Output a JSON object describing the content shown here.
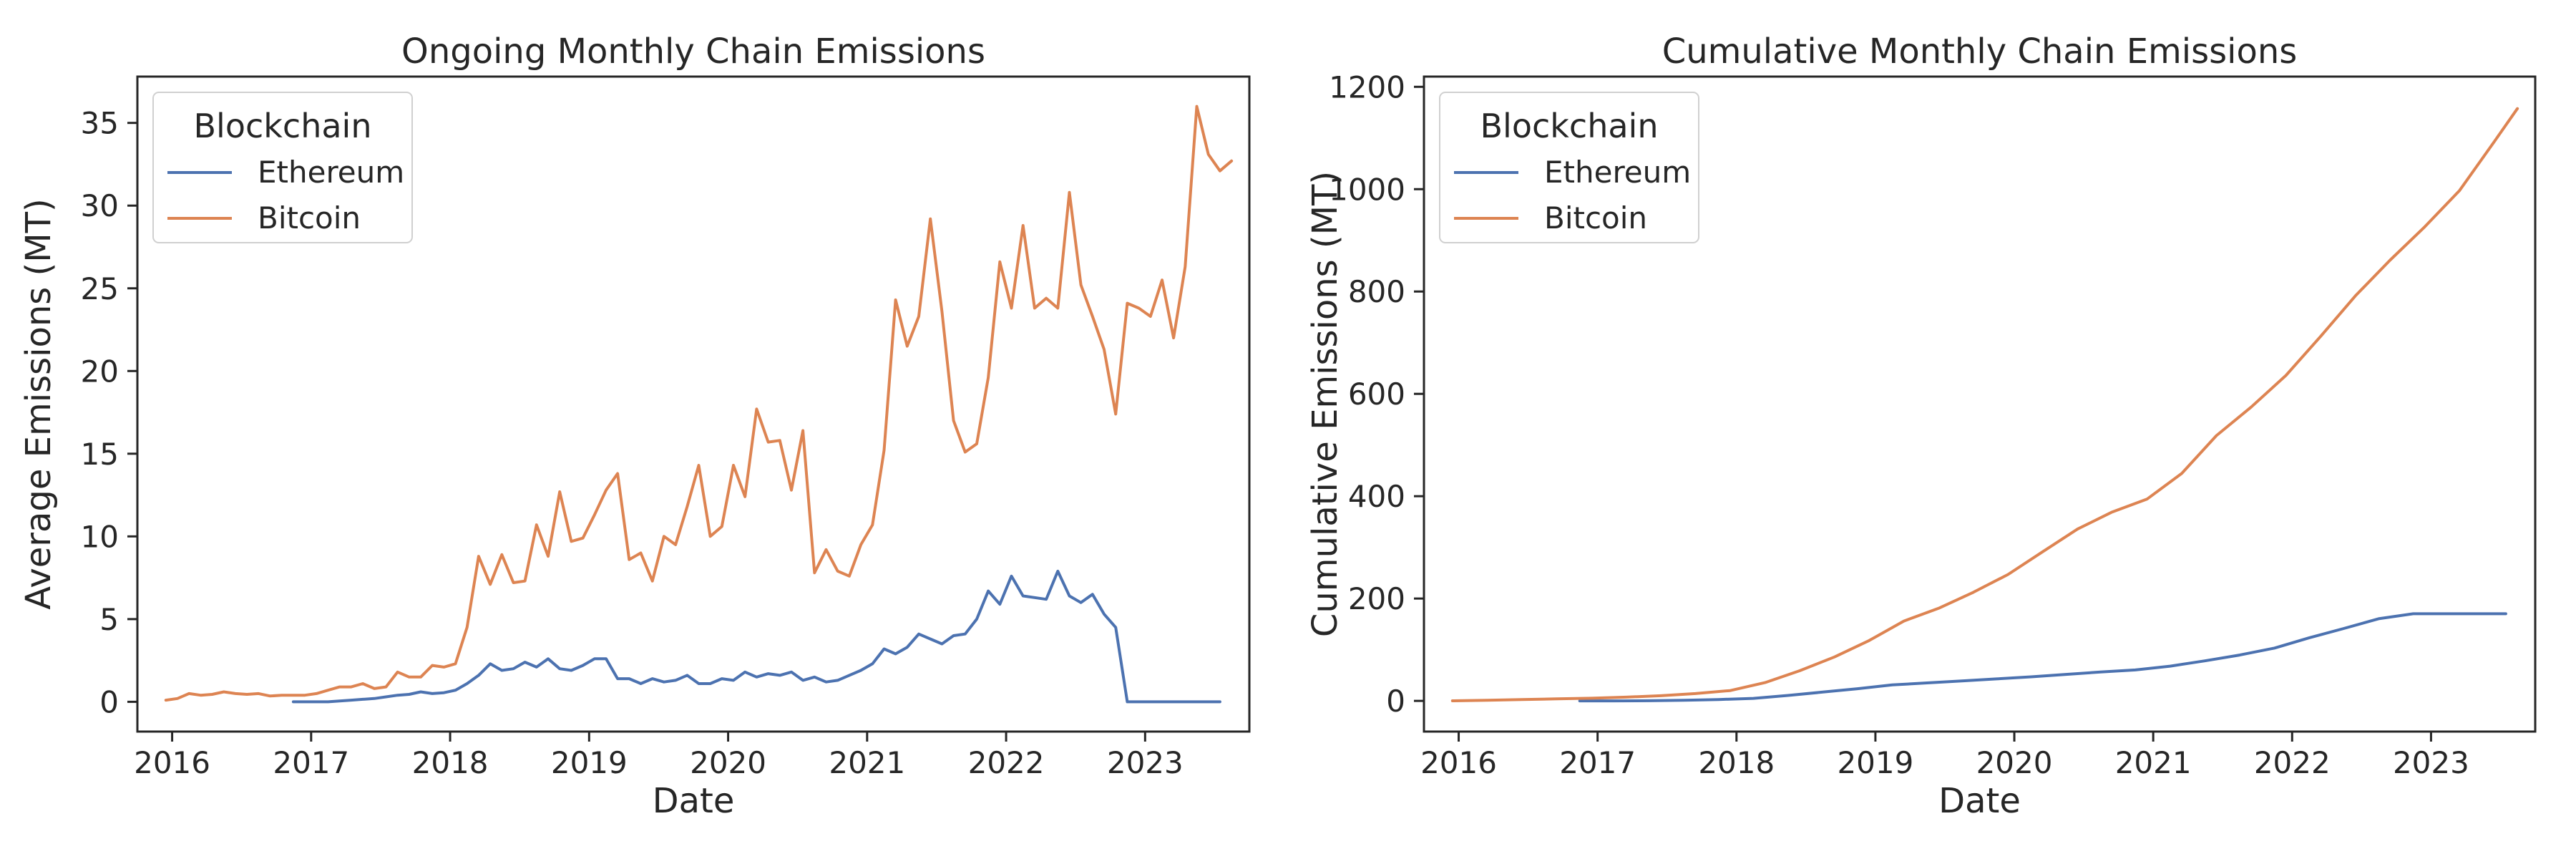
{
  "chart_data": [
    {
      "type": "line",
      "title": "Ongoing Monthly Chain Emissions",
      "xlabel": "Date",
      "ylabel": "Average Emissions (MT)",
      "xlim": [
        "2015-10-01",
        "2023-10-01"
      ],
      "ylim": [
        -1.8,
        37.8
      ],
      "xticks": [
        "2016",
        "2017",
        "2018",
        "2019",
        "2020",
        "2021",
        "2022",
        "2023"
      ],
      "yticks": [
        0,
        5,
        10,
        15,
        20,
        25,
        30,
        35
      ],
      "legend": {
        "title": "Blockchain",
        "position": "top-left"
      },
      "grid": false,
      "series": [
        {
          "name": "Ethereum",
          "color": "#4c72b0",
          "points": [
            [
              "2016-11",
              0.0
            ],
            [
              "2016-12",
              0.0
            ],
            [
              "2017-01",
              0.0
            ],
            [
              "2017-02",
              0.0
            ],
            [
              "2017-03",
              0.05
            ],
            [
              "2017-04",
              0.1
            ],
            [
              "2017-05",
              0.15
            ],
            [
              "2017-06",
              0.2
            ],
            [
              "2017-07",
              0.3
            ],
            [
              "2017-08",
              0.4
            ],
            [
              "2017-09",
              0.45
            ],
            [
              "2017-10",
              0.6
            ],
            [
              "2017-11",
              0.5
            ],
            [
              "2017-12",
              0.55
            ],
            [
              "2018-01",
              0.7
            ],
            [
              "2018-02",
              1.1
            ],
            [
              "2018-03",
              1.6
            ],
            [
              "2018-04",
              2.3
            ],
            [
              "2018-05",
              1.9
            ],
            [
              "2018-06",
              2.0
            ],
            [
              "2018-07",
              2.4
            ],
            [
              "2018-08",
              2.1
            ],
            [
              "2018-09",
              2.6
            ],
            [
              "2018-10",
              2.0
            ],
            [
              "2018-11",
              1.9
            ],
            [
              "2018-12",
              2.2
            ],
            [
              "2019-01",
              2.6
            ],
            [
              "2019-02",
              2.6
            ],
            [
              "2019-03",
              1.4
            ],
            [
              "2019-04",
              1.4
            ],
            [
              "2019-05",
              1.1
            ],
            [
              "2019-06",
              1.4
            ],
            [
              "2019-07",
              1.2
            ],
            [
              "2019-08",
              1.3
            ],
            [
              "2019-09",
              1.6
            ],
            [
              "2019-10",
              1.1
            ],
            [
              "2019-11",
              1.1
            ],
            [
              "2019-12",
              1.4
            ],
            [
              "2020-01",
              1.3
            ],
            [
              "2020-02",
              1.8
            ],
            [
              "2020-03",
              1.5
            ],
            [
              "2020-04",
              1.7
            ],
            [
              "2020-05",
              1.6
            ],
            [
              "2020-06",
              1.8
            ],
            [
              "2020-07",
              1.3
            ],
            [
              "2020-08",
              1.5
            ],
            [
              "2020-09",
              1.2
            ],
            [
              "2020-10",
              1.3
            ],
            [
              "2020-11",
              1.6
            ],
            [
              "2020-12",
              1.9
            ],
            [
              "2021-01",
              2.3
            ],
            [
              "2021-02",
              3.2
            ],
            [
              "2021-03",
              2.9
            ],
            [
              "2021-04",
              3.3
            ],
            [
              "2021-05",
              4.1
            ],
            [
              "2021-06",
              3.8
            ],
            [
              "2021-07",
              3.5
            ],
            [
              "2021-08",
              4.0
            ],
            [
              "2021-09",
              4.1
            ],
            [
              "2021-10",
              5.0
            ],
            [
              "2021-11",
              6.7
            ],
            [
              "2021-12",
              5.9
            ],
            [
              "2022-01",
              7.6
            ],
            [
              "2022-02",
              6.4
            ],
            [
              "2022-03",
              6.3
            ],
            [
              "2022-04",
              6.2
            ],
            [
              "2022-05",
              7.9
            ],
            [
              "2022-06",
              6.4
            ],
            [
              "2022-07",
              6.0
            ],
            [
              "2022-08",
              6.5
            ],
            [
              "2022-09",
              5.3
            ],
            [
              "2022-10",
              4.5
            ],
            [
              "2022-11",
              0.0
            ],
            [
              "2022-12",
              0.0
            ],
            [
              "2023-01",
              0.0
            ],
            [
              "2023-02",
              0.0
            ],
            [
              "2023-03",
              0.0
            ],
            [
              "2023-04",
              0.0
            ],
            [
              "2023-05",
              0.0
            ],
            [
              "2023-06",
              0.0
            ],
            [
              "2023-07",
              0.0
            ]
          ]
        },
        {
          "name": "Bitcoin",
          "color": "#dd8452",
          "points": [
            [
              "2015-12",
              0.1
            ],
            [
              "2016-01",
              0.2
            ],
            [
              "2016-02",
              0.5
            ],
            [
              "2016-03",
              0.4
            ],
            [
              "2016-04",
              0.45
            ],
            [
              "2016-05",
              0.6
            ],
            [
              "2016-06",
              0.5
            ],
            [
              "2016-07",
              0.45
            ],
            [
              "2016-08",
              0.5
            ],
            [
              "2016-09",
              0.35
            ],
            [
              "2016-10",
              0.4
            ],
            [
              "2016-11",
              0.4
            ],
            [
              "2016-12",
              0.4
            ],
            [
              "2017-01",
              0.5
            ],
            [
              "2017-02",
              0.7
            ],
            [
              "2017-03",
              0.9
            ],
            [
              "2017-04",
              0.9
            ],
            [
              "2017-05",
              1.1
            ],
            [
              "2017-06",
              0.8
            ],
            [
              "2017-07",
              0.9
            ],
            [
              "2017-08",
              1.8
            ],
            [
              "2017-09",
              1.5
            ],
            [
              "2017-10",
              1.5
            ],
            [
              "2017-11",
              2.2
            ],
            [
              "2017-12",
              2.1
            ],
            [
              "2018-01",
              2.3
            ],
            [
              "2018-02",
              4.5
            ],
            [
              "2018-03",
              8.8
            ],
            [
              "2018-04",
              7.1
            ],
            [
              "2018-05",
              8.9
            ],
            [
              "2018-06",
              7.2
            ],
            [
              "2018-07",
              7.3
            ],
            [
              "2018-08",
              10.7
            ],
            [
              "2018-09",
              8.8
            ],
            [
              "2018-10",
              12.7
            ],
            [
              "2018-11",
              9.7
            ],
            [
              "2018-12",
              9.9
            ],
            [
              "2019-01",
              11.3
            ],
            [
              "2019-02",
              12.8
            ],
            [
              "2019-03",
              13.8
            ],
            [
              "2019-04",
              8.6
            ],
            [
              "2019-05",
              9.0
            ],
            [
              "2019-06",
              7.3
            ],
            [
              "2019-07",
              10.0
            ],
            [
              "2019-08",
              9.5
            ],
            [
              "2019-09",
              11.8
            ],
            [
              "2019-10",
              14.3
            ],
            [
              "2019-11",
              10.0
            ],
            [
              "2019-12",
              10.6
            ],
            [
              "2020-01",
              14.3
            ],
            [
              "2020-02",
              12.4
            ],
            [
              "2020-03",
              17.7
            ],
            [
              "2020-04",
              15.7
            ],
            [
              "2020-05",
              15.8
            ],
            [
              "2020-06",
              12.8
            ],
            [
              "2020-07",
              16.4
            ],
            [
              "2020-08",
              7.8
            ],
            [
              "2020-09",
              9.2
            ],
            [
              "2020-10",
              7.9
            ],
            [
              "2020-11",
              7.6
            ],
            [
              "2020-12",
              9.5
            ],
            [
              "2021-01",
              10.7
            ],
            [
              "2021-02",
              15.2
            ],
            [
              "2021-03",
              24.3
            ],
            [
              "2021-04",
              21.5
            ],
            [
              "2021-05",
              23.3
            ],
            [
              "2021-06",
              29.2
            ],
            [
              "2021-07",
              23.6
            ],
            [
              "2021-08",
              17.0
            ],
            [
              "2021-09",
              15.1
            ],
            [
              "2021-10",
              15.6
            ],
            [
              "2021-11",
              19.6
            ],
            [
              "2021-12",
              26.6
            ],
            [
              "2022-01",
              23.8
            ],
            [
              "2022-02",
              28.8
            ],
            [
              "2022-03",
              23.8
            ],
            [
              "2022-04",
              24.4
            ],
            [
              "2022-05",
              23.8
            ],
            [
              "2022-06",
              30.8
            ],
            [
              "2022-07",
              25.2
            ],
            [
              "2022-08",
              23.3
            ],
            [
              "2022-09",
              21.3
            ],
            [
              "2022-10",
              17.4
            ],
            [
              "2022-11",
              24.1
            ],
            [
              "2022-12",
              23.8
            ],
            [
              "2023-01",
              23.3
            ],
            [
              "2023-02",
              25.5
            ],
            [
              "2023-03",
              22.0
            ],
            [
              "2023-04",
              26.3
            ],
            [
              "2023-05",
              36.0
            ],
            [
              "2023-06",
              33.1
            ],
            [
              "2023-07",
              32.1
            ],
            [
              "2023-08",
              32.7
            ]
          ]
        }
      ]
    },
    {
      "type": "line",
      "title": "Cumulative Monthly Chain Emissions",
      "xlabel": "Date",
      "ylabel": "Cumulative Emissions (MT)",
      "xlim": [
        "2015-10-01",
        "2023-10-01"
      ],
      "ylim": [
        -60,
        1220
      ],
      "xticks": [
        "2016",
        "2017",
        "2018",
        "2019",
        "2020",
        "2021",
        "2022",
        "2023"
      ],
      "yticks": [
        0,
        200,
        400,
        600,
        800,
        1000,
        1200
      ],
      "legend": {
        "title": "Blockchain",
        "position": "top-left"
      },
      "grid": false,
      "series": [
        {
          "name": "Ethereum",
          "color": "#4c72b0",
          "points": [
            [
              "2016-11",
              0
            ],
            [
              "2017-02",
              0
            ],
            [
              "2017-05",
              0.3
            ],
            [
              "2017-08",
              1.2
            ],
            [
              "2017-11",
              2.7
            ],
            [
              "2018-02",
              4.9
            ],
            [
              "2018-05",
              10.7
            ],
            [
              "2018-08",
              17.2
            ],
            [
              "2018-11",
              23.8
            ],
            [
              "2019-02",
              31.2
            ],
            [
              "2019-05",
              35.1
            ],
            [
              "2019-08",
              39.0
            ],
            [
              "2019-11",
              42.9
            ],
            [
              "2020-02",
              47.0
            ],
            [
              "2020-05",
              51.8
            ],
            [
              "2020-08",
              56.4
            ],
            [
              "2020-11",
              60.5
            ],
            [
              "2021-02",
              67.9
            ],
            [
              "2021-05",
              78.2
            ],
            [
              "2021-08",
              89.5
            ],
            [
              "2021-11",
              103.1
            ],
            [
              "2022-02",
              123.1
            ],
            [
              "2022-05",
              141.5
            ],
            [
              "2022-08",
              160.5
            ],
            [
              "2022-11",
              170.3
            ],
            [
              "2023-02",
              170.3
            ],
            [
              "2023-05",
              170.3
            ],
            [
              "2023-07",
              170.3
            ]
          ]
        },
        {
          "name": "Bitcoin",
          "color": "#dd8452",
          "points": [
            [
              "2015-12",
              0.1
            ],
            [
              "2016-03",
              1.2
            ],
            [
              "2016-06",
              2.7
            ],
            [
              "2016-09",
              4.0
            ],
            [
              "2016-12",
              5.2
            ],
            [
              "2017-03",
              7.3
            ],
            [
              "2017-06",
              10.1
            ],
            [
              "2017-09",
              14.3
            ],
            [
              "2017-12",
              20.1
            ],
            [
              "2018-03",
              35.7
            ],
            [
              "2018-06",
              58.9
            ],
            [
              "2018-09",
              85.7
            ],
            [
              "2018-12",
              118.0
            ],
            [
              "2019-03",
              156.0
            ],
            [
              "2019-06",
              180.9
            ],
            [
              "2019-09",
              212.2
            ],
            [
              "2019-12",
              247.1
            ],
            [
              "2020-03",
              291.5
            ],
            [
              "2020-06",
              335.8
            ],
            [
              "2020-09",
              369.2
            ],
            [
              "2020-12",
              394.2
            ],
            [
              "2021-03",
              444.4
            ],
            [
              "2021-06",
              518.4
            ],
            [
              "2021-09",
              574.1
            ],
            [
              "2021-12",
              636.0
            ],
            [
              "2022-03",
              712.4
            ],
            [
              "2022-06",
              791.4
            ],
            [
              "2022-09",
              861.2
            ],
            [
              "2022-12",
              926.5
            ],
            [
              "2023-03",
              997.3
            ],
            [
              "2023-06",
              1092.7
            ],
            [
              "2023-08",
              1157.5
            ]
          ]
        }
      ]
    }
  ]
}
